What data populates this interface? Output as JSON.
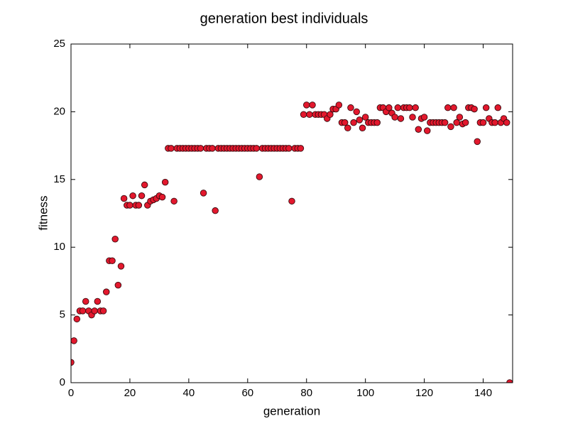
{
  "chart_data": {
    "type": "scatter",
    "title": "generation best individuals",
    "x_label": "generation",
    "y_label": "fitness",
    "xlim": [
      0,
      150
    ],
    "ylim": [
      0,
      25
    ],
    "xticks": [
      0,
      20,
      40,
      60,
      80,
      100,
      120,
      140
    ],
    "yticks": [
      0,
      5,
      10,
      15,
      20,
      25
    ],
    "color": "#e3182d",
    "x": [
      0,
      1,
      2,
      3,
      4,
      5,
      6,
      7,
      8,
      9,
      10,
      11,
      12,
      13,
      14,
      15,
      16,
      17,
      18,
      19,
      20,
      21,
      22,
      23,
      24,
      25,
      26,
      27,
      28,
      29,
      30,
      31,
      32,
      33,
      34,
      35,
      36,
      37,
      38,
      39,
      40,
      41,
      42,
      43,
      44,
      45,
      46,
      47,
      48,
      49,
      50,
      51,
      52,
      53,
      54,
      55,
      56,
      57,
      58,
      59,
      60,
      61,
      62,
      63,
      64,
      65,
      66,
      67,
      68,
      69,
      70,
      71,
      72,
      73,
      74,
      75,
      76,
      77,
      78,
      79,
      80,
      81,
      82,
      83,
      84,
      85,
      86,
      87,
      88,
      89,
      90,
      91,
      92,
      93,
      94,
      95,
      96,
      97,
      98,
      99,
      100,
      101,
      102,
      103,
      104,
      105,
      106,
      107,
      108,
      109,
      110,
      111,
      112,
      113,
      114,
      115,
      116,
      117,
      118,
      119,
      120,
      121,
      122,
      123,
      124,
      125,
      126,
      127,
      128,
      129,
      130,
      131,
      132,
      133,
      134,
      135,
      136,
      137,
      138,
      139,
      140,
      141,
      142,
      143,
      144,
      145,
      146,
      147,
      148,
      149
    ],
    "values": [
      1.5,
      3.1,
      4.7,
      5.3,
      5.3,
      6.0,
      5.3,
      5.0,
      5.3,
      6.0,
      5.3,
      5.3,
      6.7,
      9.0,
      9.0,
      10.6,
      7.2,
      8.6,
      13.6,
      13.1,
      13.1,
      13.8,
      13.1,
      13.1,
      13.8,
      14.6,
      13.1,
      13.4,
      13.5,
      13.6,
      13.8,
      13.7,
      14.8,
      17.3,
      17.3,
      13.4,
      17.3,
      17.3,
      17.3,
      17.3,
      17.3,
      17.3,
      17.3,
      17.3,
      17.3,
      14.0,
      17.3,
      17.3,
      17.3,
      12.7,
      17.3,
      17.3,
      17.3,
      17.3,
      17.3,
      17.3,
      17.3,
      17.3,
      17.3,
      17.3,
      17.3,
      17.3,
      17.3,
      17.3,
      15.2,
      17.3,
      17.3,
      17.3,
      17.3,
      17.3,
      17.3,
      17.3,
      17.3,
      17.3,
      17.3,
      13.4,
      17.3,
      17.3,
      17.3,
      19.8,
      20.5,
      19.8,
      20.5,
      19.8,
      19.8,
      19.8,
      19.8,
      19.5,
      19.8,
      20.2,
      20.2,
      20.5,
      19.2,
      19.2,
      18.8,
      20.3,
      19.2,
      20.0,
      19.4,
      18.8,
      19.6,
      19.2,
      19.2,
      19.2,
      19.2,
      20.3,
      20.3,
      20.0,
      20.3,
      19.9,
      19.6,
      20.3,
      19.5,
      20.3,
      20.3,
      20.3,
      19.6,
      20.3,
      18.7,
      19.5,
      19.6,
      18.6,
      19.2,
      19.2,
      19.2,
      19.2,
      19.2,
      19.2,
      20.3,
      18.9,
      20.3,
      19.2,
      19.6,
      19.1,
      19.2,
      20.3,
      20.3,
      20.2,
      17.8,
      19.2,
      19.2,
      20.3,
      19.5,
      19.2,
      19.2,
      20.3,
      19.2,
      19.5,
      19.2,
      0
    ]
  }
}
